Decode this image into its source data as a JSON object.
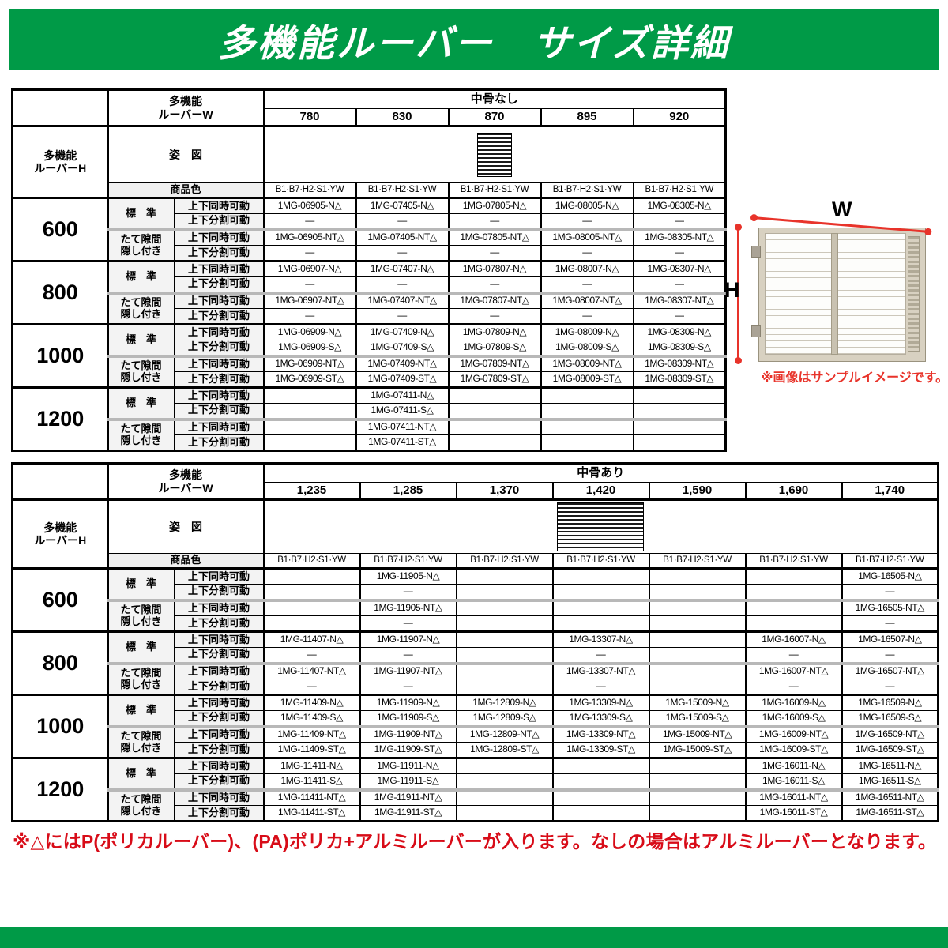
{
  "header": {
    "title": "多機能ルーバー　サイズ詳細"
  },
  "colors": {
    "accent_green": "#009a47",
    "note_red": "#d80c18",
    "dimension_red": "#e8332a"
  },
  "side_figure": {
    "w_label": "W",
    "h_label": "H",
    "caption": "※画像はサンプルイメージです。"
  },
  "footnote": {
    "text": "※△にはP(ポリカルーバー)、(PA)ポリカ+アルミルーバーが入ります。なしの場合はアルミルーバーとなります。"
  },
  "tables": [
    {
      "name": "中骨なし",
      "w_header": "多機能\nルーバーW",
      "h_header": "多機能\nルーバーH",
      "group_label": "中骨なし",
      "figure_label": "姿　図",
      "color_label": "商品色",
      "color_value": "B1·B7·H2·S1·YW",
      "type_labels": [
        "標　準",
        "たて隙間\n隠し付き"
      ],
      "movable_labels": [
        "上下同時可動",
        "上下分割可動"
      ],
      "widths": [
        "780",
        "830",
        "870",
        "895",
        "920"
      ],
      "rows": [
        {
          "height": "600",
          "subrows": [
            {
              "cells": [
                "1MG-06905-N△",
                "1MG-07405-N△",
                "1MG-07805-N△",
                "1MG-08005-N△",
                "1MG-08305-N△"
              ]
            },
            {
              "cells": [
                "―",
                "―",
                "―",
                "―",
                "―"
              ]
            },
            {
              "cells": [
                "1MG-06905-NT△",
                "1MG-07405-NT△",
                "1MG-07805-NT△",
                "1MG-08005-NT△",
                "1MG-08305-NT△"
              ]
            },
            {
              "cells": [
                "―",
                "―",
                "―",
                "―",
                "―"
              ]
            }
          ]
        },
        {
          "height": "800",
          "subrows": [
            {
              "cells": [
                "1MG-06907-N△",
                "1MG-07407-N△",
                "1MG-07807-N△",
                "1MG-08007-N△",
                "1MG-08307-N△"
              ]
            },
            {
              "cells": [
                "―",
                "―",
                "―",
                "―",
                "―"
              ]
            },
            {
              "cells": [
                "1MG-06907-NT△",
                "1MG-07407-NT△",
                "1MG-07807-NT△",
                "1MG-08007-NT△",
                "1MG-08307-NT△"
              ]
            },
            {
              "cells": [
                "―",
                "―",
                "―",
                "―",
                "―"
              ]
            }
          ]
        },
        {
          "height": "1000",
          "subrows": [
            {
              "cells": [
                "1MG-06909-N△",
                "1MG-07409-N△",
                "1MG-07809-N△",
                "1MG-08009-N△",
                "1MG-08309-N△"
              ]
            },
            {
              "cells": [
                "1MG-06909-S△",
                "1MG-07409-S△",
                "1MG-07809-S△",
                "1MG-08009-S△",
                "1MG-08309-S△"
              ]
            },
            {
              "cells": [
                "1MG-06909-NT△",
                "1MG-07409-NT△",
                "1MG-07809-NT△",
                "1MG-08009-NT△",
                "1MG-08309-NT△"
              ]
            },
            {
              "cells": [
                "1MG-06909-ST△",
                "1MG-07409-ST△",
                "1MG-07809-ST△",
                "1MG-08009-ST△",
                "1MG-08309-ST△"
              ]
            }
          ]
        },
        {
          "height": "1200",
          "subrows": [
            {
              "cells": [
                "",
                "1MG-07411-N△",
                "",
                "",
                ""
              ]
            },
            {
              "cells": [
                "",
                "1MG-07411-S△",
                "",
                "",
                ""
              ]
            },
            {
              "cells": [
                "",
                "1MG-07411-NT△",
                "",
                "",
                ""
              ]
            },
            {
              "cells": [
                "",
                "1MG-07411-ST△",
                "",
                "",
                ""
              ]
            }
          ]
        }
      ]
    },
    {
      "name": "中骨あり",
      "w_header": "多機能\nルーバーW",
      "h_header": "多機能\nルーバーH",
      "group_label": "中骨あり",
      "figure_label": "姿　図",
      "color_label": "商品色",
      "color_value": "B1·B7·H2·S1·YW",
      "type_labels": [
        "標　準",
        "たて隙間\n隠し付き"
      ],
      "movable_labels": [
        "上下同時可動",
        "上下分割可動"
      ],
      "widths": [
        "1,235",
        "1,285",
        "1,370",
        "1,420",
        "1,590",
        "1,690",
        "1,740"
      ],
      "rows": [
        {
          "height": "600",
          "subrows": [
            {
              "cells": [
                "",
                "1MG-11905-N△",
                "",
                "",
                "",
                "",
                "1MG-16505-N△"
              ]
            },
            {
              "cells": [
                "",
                "―",
                "",
                "",
                "",
                "",
                "―"
              ]
            },
            {
              "cells": [
                "",
                "1MG-11905-NT△",
                "",
                "",
                "",
                "",
                "1MG-16505-NT△"
              ]
            },
            {
              "cells": [
                "",
                "―",
                "",
                "",
                "",
                "",
                "―"
              ]
            }
          ]
        },
        {
          "height": "800",
          "subrows": [
            {
              "cells": [
                "1MG-11407-N△",
                "1MG-11907-N△",
                "",
                "1MG-13307-N△",
                "",
                "1MG-16007-N△",
                "1MG-16507-N△"
              ]
            },
            {
              "cells": [
                "―",
                "―",
                "",
                "―",
                "",
                "―",
                "―"
              ]
            },
            {
              "cells": [
                "1MG-11407-NT△",
                "1MG-11907-NT△",
                "",
                "1MG-13307-NT△",
                "",
                "1MG-16007-NT△",
                "1MG-16507-NT△"
              ]
            },
            {
              "cells": [
                "―",
                "―",
                "",
                "―",
                "",
                "―",
                "―"
              ]
            }
          ]
        },
        {
          "height": "1000",
          "subrows": [
            {
              "cells": [
                "1MG-11409-N△",
                "1MG-11909-N△",
                "1MG-12809-N△",
                "1MG-13309-N△",
                "1MG-15009-N△",
                "1MG-16009-N△",
                "1MG-16509-N△"
              ]
            },
            {
              "cells": [
                "1MG-11409-S△",
                "1MG-11909-S△",
                "1MG-12809-S△",
                "1MG-13309-S△",
                "1MG-15009-S△",
                "1MG-16009-S△",
                "1MG-16509-S△"
              ]
            },
            {
              "cells": [
                "1MG-11409-NT△",
                "1MG-11909-NT△",
                "1MG-12809-NT△",
                "1MG-13309-NT△",
                "1MG-15009-NT△",
                "1MG-16009-NT△",
                "1MG-16509-NT△"
              ]
            },
            {
              "cells": [
                "1MG-11409-ST△",
                "1MG-11909-ST△",
                "1MG-12809-ST△",
                "1MG-13309-ST△",
                "1MG-15009-ST△",
                "1MG-16009-ST△",
                "1MG-16509-ST△"
              ]
            }
          ]
        },
        {
          "height": "1200",
          "subrows": [
            {
              "cells": [
                "1MG-11411-N△",
                "1MG-11911-N△",
                "",
                "",
                "",
                "1MG-16011-N△",
                "1MG-16511-N△"
              ]
            },
            {
              "cells": [
                "1MG-11411-S△",
                "1MG-11911-S△",
                "",
                "",
                "",
                "1MG-16011-S△",
                "1MG-16511-S△"
              ]
            },
            {
              "cells": [
                "1MG-11411-NT△",
                "1MG-11911-NT△",
                "",
                "",
                "",
                "1MG-16011-NT△",
                "1MG-16511-NT△"
              ]
            },
            {
              "cells": [
                "1MG-11411-ST△",
                "1MG-11911-ST△",
                "",
                "",
                "",
                "1MG-16011-ST△",
                "1MG-16511-ST△"
              ]
            }
          ]
        }
      ]
    }
  ]
}
